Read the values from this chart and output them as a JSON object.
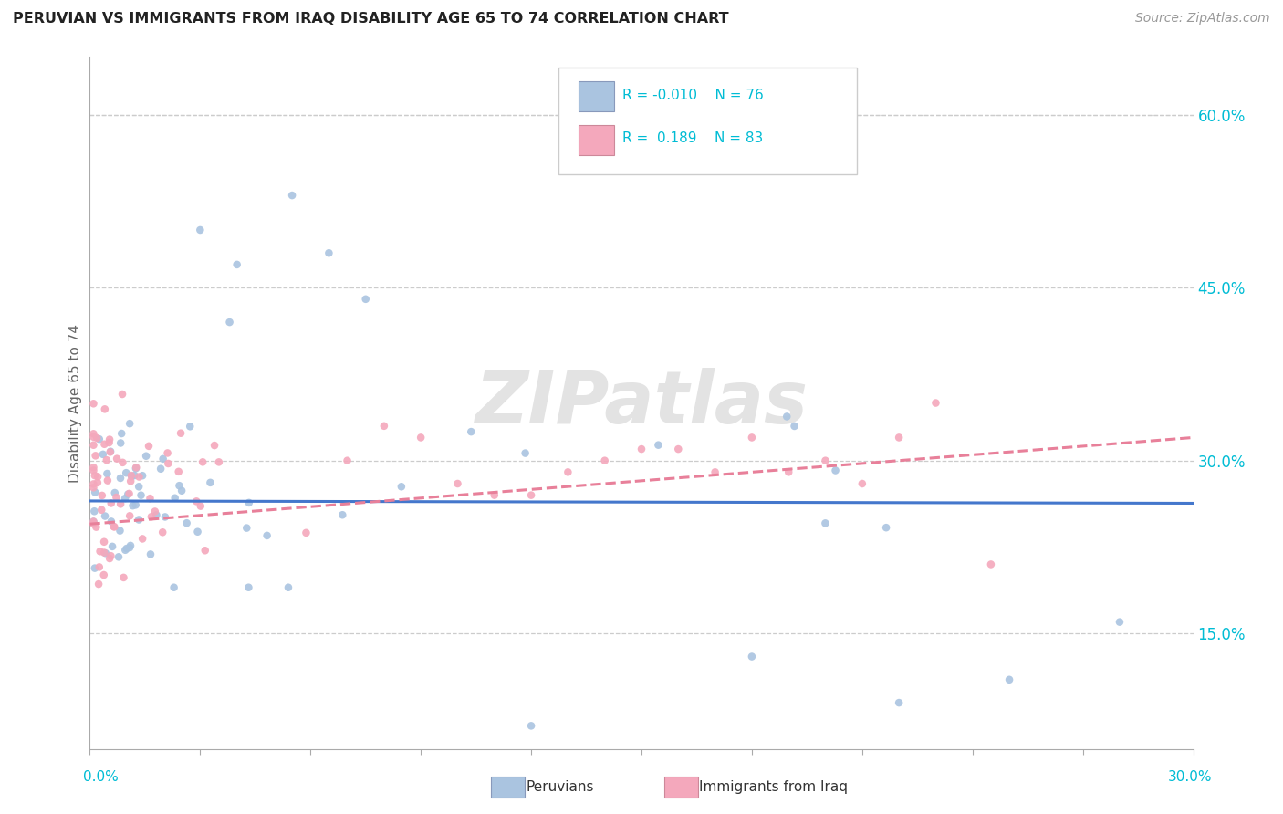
{
  "title": "PERUVIAN VS IMMIGRANTS FROM IRAQ DISABILITY AGE 65 TO 74 CORRELATION CHART",
  "source": "Source: ZipAtlas.com",
  "ylabel": "Disability Age 65 to 74",
  "right_ytick_labels": [
    "15.0%",
    "30.0%",
    "45.0%",
    "60.0%"
  ],
  "right_ytick_vals": [
    0.15,
    0.3,
    0.45,
    0.6
  ],
  "color_peruvian": "#aac4e0",
  "color_iraq": "#f4a8bc",
  "color_line_peruvian": "#4477cc",
  "color_line_iraq": "#e8809a",
  "watermark": "ZIPatlas",
  "xlim": [
    0.0,
    0.3
  ],
  "ylim": [
    0.05,
    0.65
  ],
  "peruvian_trend_y0": 0.265,
  "peruvian_trend_y1": 0.263,
  "iraq_trend_y0": 0.245,
  "iraq_trend_y1": 0.32
}
